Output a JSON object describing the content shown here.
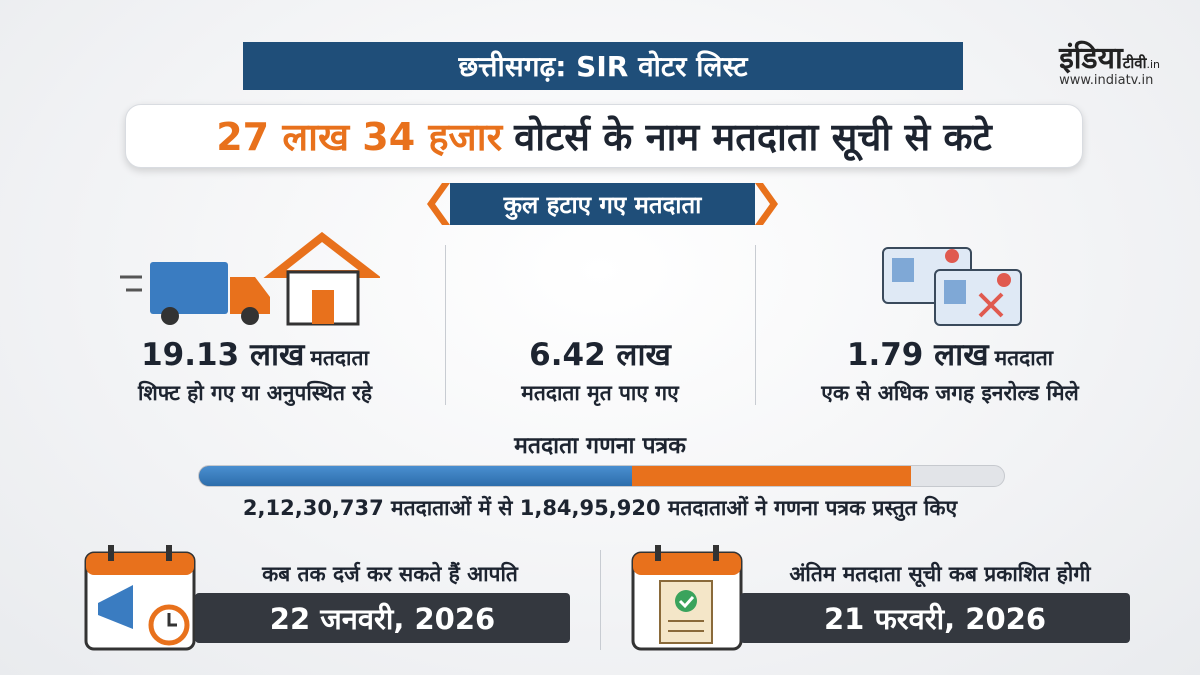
{
  "header": {
    "title": "छत्तीसगढ़: SIR वोटर लिस्ट",
    "logo": {
      "name": "इंडिया",
      "suffix": "टीवी",
      "domain": ".in",
      "url": "www.indiatv.in"
    }
  },
  "headline": {
    "highlight": "27 लाख 34 हजार",
    "text": "वोटर्स के नाम मतदाता सूची से कटे"
  },
  "section_title": "कुल हटाए गए मतदाता",
  "stats": [
    {
      "figure": "19.13 लाख",
      "unit": "मतदाता",
      "description": "शिफ्ट हो गए या अनुपस्थित रहे"
    },
    {
      "figure": "6.42 लाख",
      "description": "मतदाता मृत पाए गए"
    },
    {
      "figure": "1.79 लाख",
      "unit": "मतदाता",
      "description": "एक से अधिक जगह इनरोल्ड मिले"
    }
  ],
  "form_status": {
    "title": "मतदाता गणना पत्रक",
    "summary": "2,12,30,737 मतदाताओं में से 1,84,95,920 मतदाताओं ने गणना पत्रक प्रस्तुत किए"
  },
  "dates": [
    {
      "question": "कब तक दर्ज कर सकते हैं आपति",
      "date": "22 जनवरी, 2026"
    },
    {
      "question": "अंतिम मतदाता सूची कब प्रकाशित होगी",
      "date": "21 फरवरी, 2026"
    }
  ]
}
